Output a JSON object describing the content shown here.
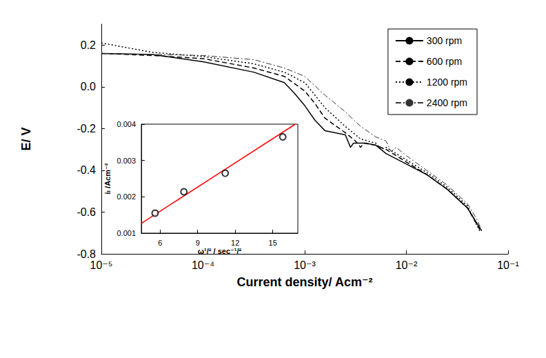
{
  "chart_data": [
    {
      "type": "line",
      "log": "x",
      "grid": false,
      "legend": "upper right",
      "x_label": "Current density/ Acm⁻²",
      "y_label": "E/ V",
      "xlim": [
        1e-05,
        0.1
      ],
      "xticks": [
        {
          "value": 1e-05,
          "label": "10⁻⁵"
        },
        {
          "value": 0.0001,
          "label": "10⁻⁴"
        },
        {
          "value": 0.001,
          "label": "10⁻³"
        },
        {
          "value": 0.01,
          "label": "10⁻²"
        },
        {
          "value": 0.1,
          "label": "10⁻¹"
        }
      ],
      "ylim": [
        -0.8,
        0.3
      ],
      "yticks": [
        -0.8,
        -0.6,
        -0.4,
        -0.2,
        {
          "value": 0,
          "label": "0.0"
        },
        0.2
      ],
      "series": [
        {
          "name": "300 rpm",
          "line_style": "solid",
          "color": "#000000",
          "x": [
            1e-05,
            3.16e-05,
            0.0001,
            0.000316,
            0.00063,
            0.00079,
            0.001,
            0.00126,
            0.00158,
            0.002,
            0.00251,
            0.00282,
            0.00302,
            0.00398,
            0.00501,
            0.00631,
            0.01,
            0.0158,
            0.0251,
            0.0398,
            0.055
          ],
          "values": [
            0.16,
            0.155,
            0.12,
            0.07,
            0.02,
            -0.03,
            -0.09,
            -0.16,
            -0.21,
            -0.22,
            -0.23,
            -0.29,
            -0.27,
            -0.27,
            -0.28,
            -0.32,
            -0.37,
            -0.42,
            -0.49,
            -0.58,
            -0.69
          ]
        },
        {
          "name": "600 rpm",
          "line_style": "dashed",
          "color": "#000000",
          "x": [
            1e-05,
            3.16e-05,
            0.0001,
            0.000316,
            0.00063,
            0.001,
            0.00126,
            0.00158,
            0.00251,
            0.00316,
            0.00355,
            0.0038,
            0.00501,
            0.00631,
            0.01,
            0.0158,
            0.0251,
            0.0398,
            0.0537
          ],
          "values": [
            0.16,
            0.15,
            0.135,
            0.09,
            0.05,
            -0.02,
            -0.08,
            -0.15,
            -0.22,
            -0.26,
            -0.29,
            -0.27,
            -0.28,
            -0.3,
            -0.36,
            -0.42,
            -0.49,
            -0.58,
            -0.69
          ]
        },
        {
          "name": "1200 rpm",
          "line_style": "dotted",
          "color": "#000000",
          "x": [
            1e-05,
            3.16e-05,
            0.0001,
            0.000316,
            0.00063,
            0.001,
            0.00126,
            0.00158,
            0.00251,
            0.00355,
            0.00501,
            0.00562,
            0.00631,
            0.01,
            0.0158,
            0.0251,
            0.0398,
            0.0525
          ],
          "values": [
            0.21,
            0.165,
            0.145,
            0.11,
            0.07,
            0.02,
            -0.04,
            -0.1,
            -0.19,
            -0.25,
            -0.27,
            -0.3,
            -0.29,
            -0.35,
            -0.41,
            -0.48,
            -0.57,
            -0.69
          ]
        },
        {
          "name": "2400 rpm",
          "line_style": "dashdot",
          "color": "#333333",
          "x": [
            1e-05,
            3.16e-05,
            0.0001,
            0.000316,
            0.00063,
            0.001,
            0.00158,
            0.00251,
            0.00355,
            0.00501,
            0.00631,
            0.00708,
            0.00794,
            0.01,
            0.0158,
            0.0251,
            0.0398,
            0.0501,
            0.055
          ],
          "values": [
            0.16,
            0.155,
            0.15,
            0.13,
            0.09,
            0.05,
            -0.04,
            -0.12,
            -0.19,
            -0.24,
            -0.26,
            -0.31,
            -0.29,
            -0.33,
            -0.4,
            -0.47,
            -0.56,
            -0.64,
            -0.69
          ]
        }
      ]
    },
    {
      "type": "scatter",
      "grid": false,
      "x_label": "ω¹/² / sec⁻¹/²",
      "y_label": "iₗ /Acm⁻²",
      "xlim": [
        4.5,
        17
      ],
      "xticks": [
        6,
        9,
        12,
        15
      ],
      "ylim": [
        0.001,
        0.004
      ],
      "yticks": [
        0.001,
        0.002,
        0.003,
        0.004
      ],
      "series": [
        {
          "type": "scatter",
          "marker": "circle",
          "color": "#000000",
          "x": [
            5.6,
            7.9,
            11.2,
            15.8
          ],
          "values": [
            0.00155,
            0.00214,
            0.00265,
            0.00365
          ]
        },
        {
          "type": "line",
          "line_style": "solid",
          "color": "#ff0000",
          "x": [
            4.5,
            16.8
          ],
          "values": [
            0.00127,
            0.004
          ]
        }
      ]
    }
  ]
}
